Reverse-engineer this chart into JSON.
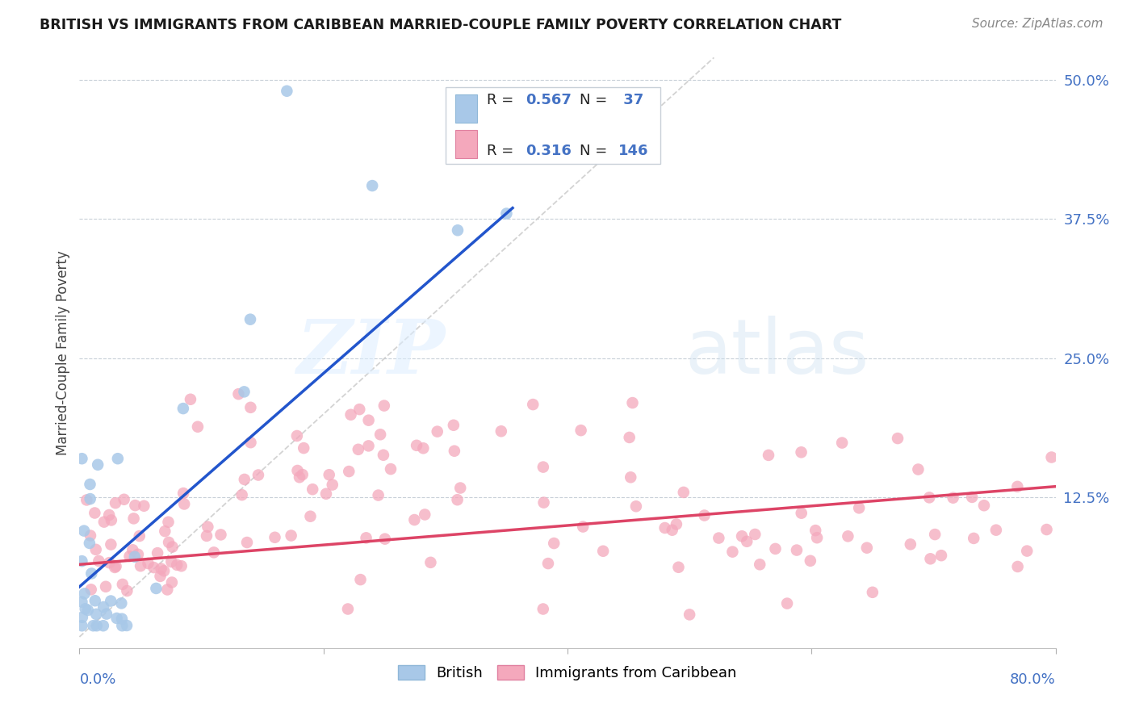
{
  "title": "BRITISH VS IMMIGRANTS FROM CARIBBEAN MARRIED-COUPLE FAMILY POVERTY CORRELATION CHART",
  "source": "Source: ZipAtlas.com",
  "ylabel": "Married-Couple Family Poverty",
  "color_british": "#a8c8e8",
  "color_caribbean": "#f4a8bc",
  "color_line_british": "#2255cc",
  "color_line_caribbean": "#dd4466",
  "color_diag": "#c8c8c8",
  "xlim": [
    0.0,
    0.8
  ],
  "ylim": [
    -0.01,
    0.52
  ],
  "ytick_vals": [
    0.125,
    0.25,
    0.375,
    0.5
  ],
  "ytick_labels": [
    "12.5%",
    "25.0%",
    "37.5%",
    "50.0%"
  ],
  "british_line_x": [
    0.0,
    0.355
  ],
  "british_line_y": [
    0.045,
    0.385
  ],
  "caribbean_line_x": [
    0.0,
    0.8
  ],
  "caribbean_line_y": [
    0.065,
    0.135
  ],
  "diag_line_x": [
    0.0,
    0.52
  ],
  "diag_line_y": [
    0.0,
    0.52
  ],
  "seed": 77
}
